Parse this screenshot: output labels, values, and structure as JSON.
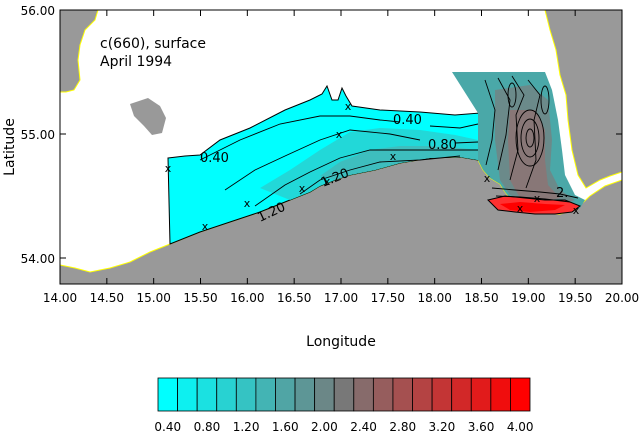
{
  "map": {
    "title": "c(660), surface",
    "subtitle": "April 1994",
    "xlabel": "Longitude",
    "ylabel": "Latitude",
    "x_ticks": [
      "14.00",
      "14.50",
      "15.00",
      "15.50",
      "16.00",
      "16.50",
      "17.00",
      "17.50",
      "18.00",
      "18.50",
      "19.00",
      "19.50",
      "20.00"
    ],
    "y_ticks": [
      "56.00",
      "55.00",
      "54.00"
    ],
    "contour_labels": [
      "0.40",
      "0.40",
      "0.80",
      "1.20",
      "1.20",
      "2."
    ],
    "colors": {
      "water": "#ffffff",
      "land": "#999999",
      "coastline": "#ffff00",
      "scale_low": "#00ffff",
      "scale_mid": "#777777",
      "scale_high": "#ff0000"
    },
    "stations_marker": "x"
  },
  "colorbar": {
    "labels": [
      "0.40",
      "0.80",
      "1.20",
      "1.60",
      "2.00",
      "2.40",
      "2.80",
      "3.20",
      "3.60",
      "4.00"
    ],
    "levels": [
      0.4,
      0.6,
      0.8,
      1.0,
      1.2,
      1.4,
      1.6,
      1.8,
      2.0,
      2.2,
      2.4,
      2.6,
      2.8,
      3.0,
      3.2,
      3.4,
      3.6,
      3.8,
      4.0,
      4.2
    ]
  }
}
